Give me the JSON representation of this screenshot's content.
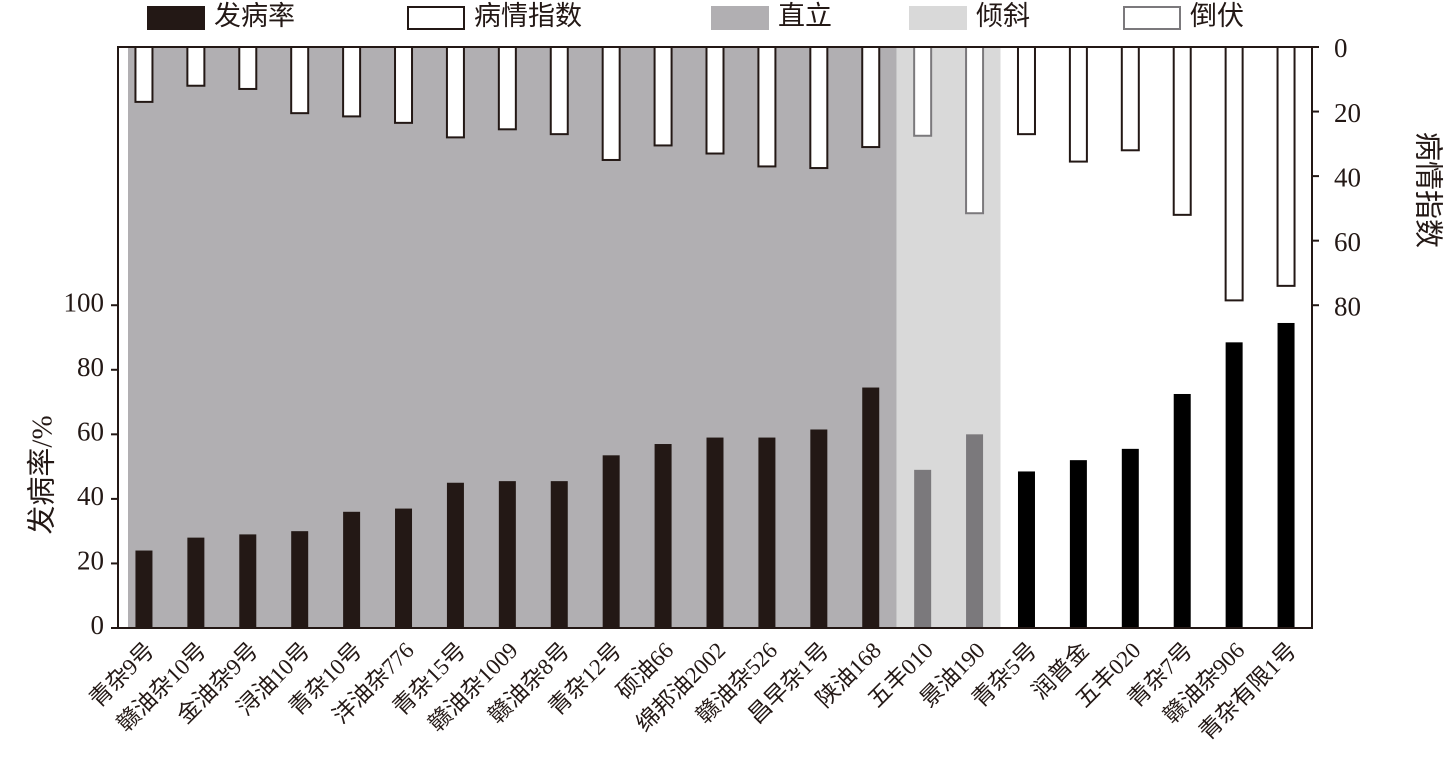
{
  "chart_data": {
    "type": "bar",
    "categories": [
      "青杂9号",
      "赣油杂10号",
      "金油杂9号",
      "浔油10号",
      "青杂10号",
      "沣油杂776",
      "青杂15号",
      "赣油杂1009",
      "赣油杂8号",
      "青杂12号",
      "硕油66",
      "绵邦油2002",
      "赣油杂526",
      "昌早杂1号",
      "陕油168",
      "五丰010",
      "景油190",
      "青杂5号",
      "润普金",
      "五丰020",
      "青杂7号",
      "赣油杂906",
      "青杂有限1号"
    ],
    "category_group": [
      "直立",
      "直立",
      "直立",
      "直立",
      "直立",
      "直立",
      "直立",
      "直立",
      "直立",
      "直立",
      "直立",
      "直立",
      "直立",
      "直立",
      "直立",
      "倾斜",
      "倾斜",
      "倒伏",
      "倒伏",
      "倒伏",
      "倒伏",
      "倒伏",
      "倒伏"
    ],
    "groups": [
      {
        "name": "直立",
        "color": "#b1afb2",
        "bar_color": "#231815",
        "outline_color": "#231815",
        "legend_stroke": "#b1afb2"
      },
      {
        "name": "倾斜",
        "color": "#d9d9d9",
        "bar_color": "#7b797c",
        "outline_color": "#7b797c",
        "legend_stroke": "#d9d9d9"
      },
      {
        "name": "倒伏",
        "color": "#ffffff",
        "bar_color": "#000000",
        "outline_color": "#231815",
        "legend_stroke": "#7b797c"
      }
    ],
    "series": [
      {
        "name": "发病率",
        "color": "#231815",
        "axis": "y",
        "values": [
          24,
          28,
          29,
          30,
          36,
          37,
          45,
          45.5,
          45.5,
          53.5,
          57,
          59,
          59,
          61.5,
          74.5,
          49,
          60,
          48.5,
          52,
          55.5,
          72.5,
          88.5,
          94.5
        ]
      },
      {
        "name": "病情指数",
        "color": "#ffffff",
        "axis": "y2",
        "values": [
          17,
          12,
          13,
          20.5,
          21.5,
          23.5,
          28,
          25.5,
          27,
          35,
          30.5,
          33,
          37,
          37.5,
          31,
          27.5,
          51.5,
          27,
          35.5,
          32,
          52,
          78.5,
          74
        ]
      }
    ],
    "y_label": "发病率/%",
    "y2_label": "病情指数",
    "ylim": [
      0,
      180
    ],
    "yticks": [
      0,
      20,
      40,
      60,
      80,
      100
    ],
    "y2lim": [
      0,
      180
    ],
    "y2ticks": [
      0,
      20,
      40,
      60,
      80
    ],
    "y2_inverted": true
  }
}
